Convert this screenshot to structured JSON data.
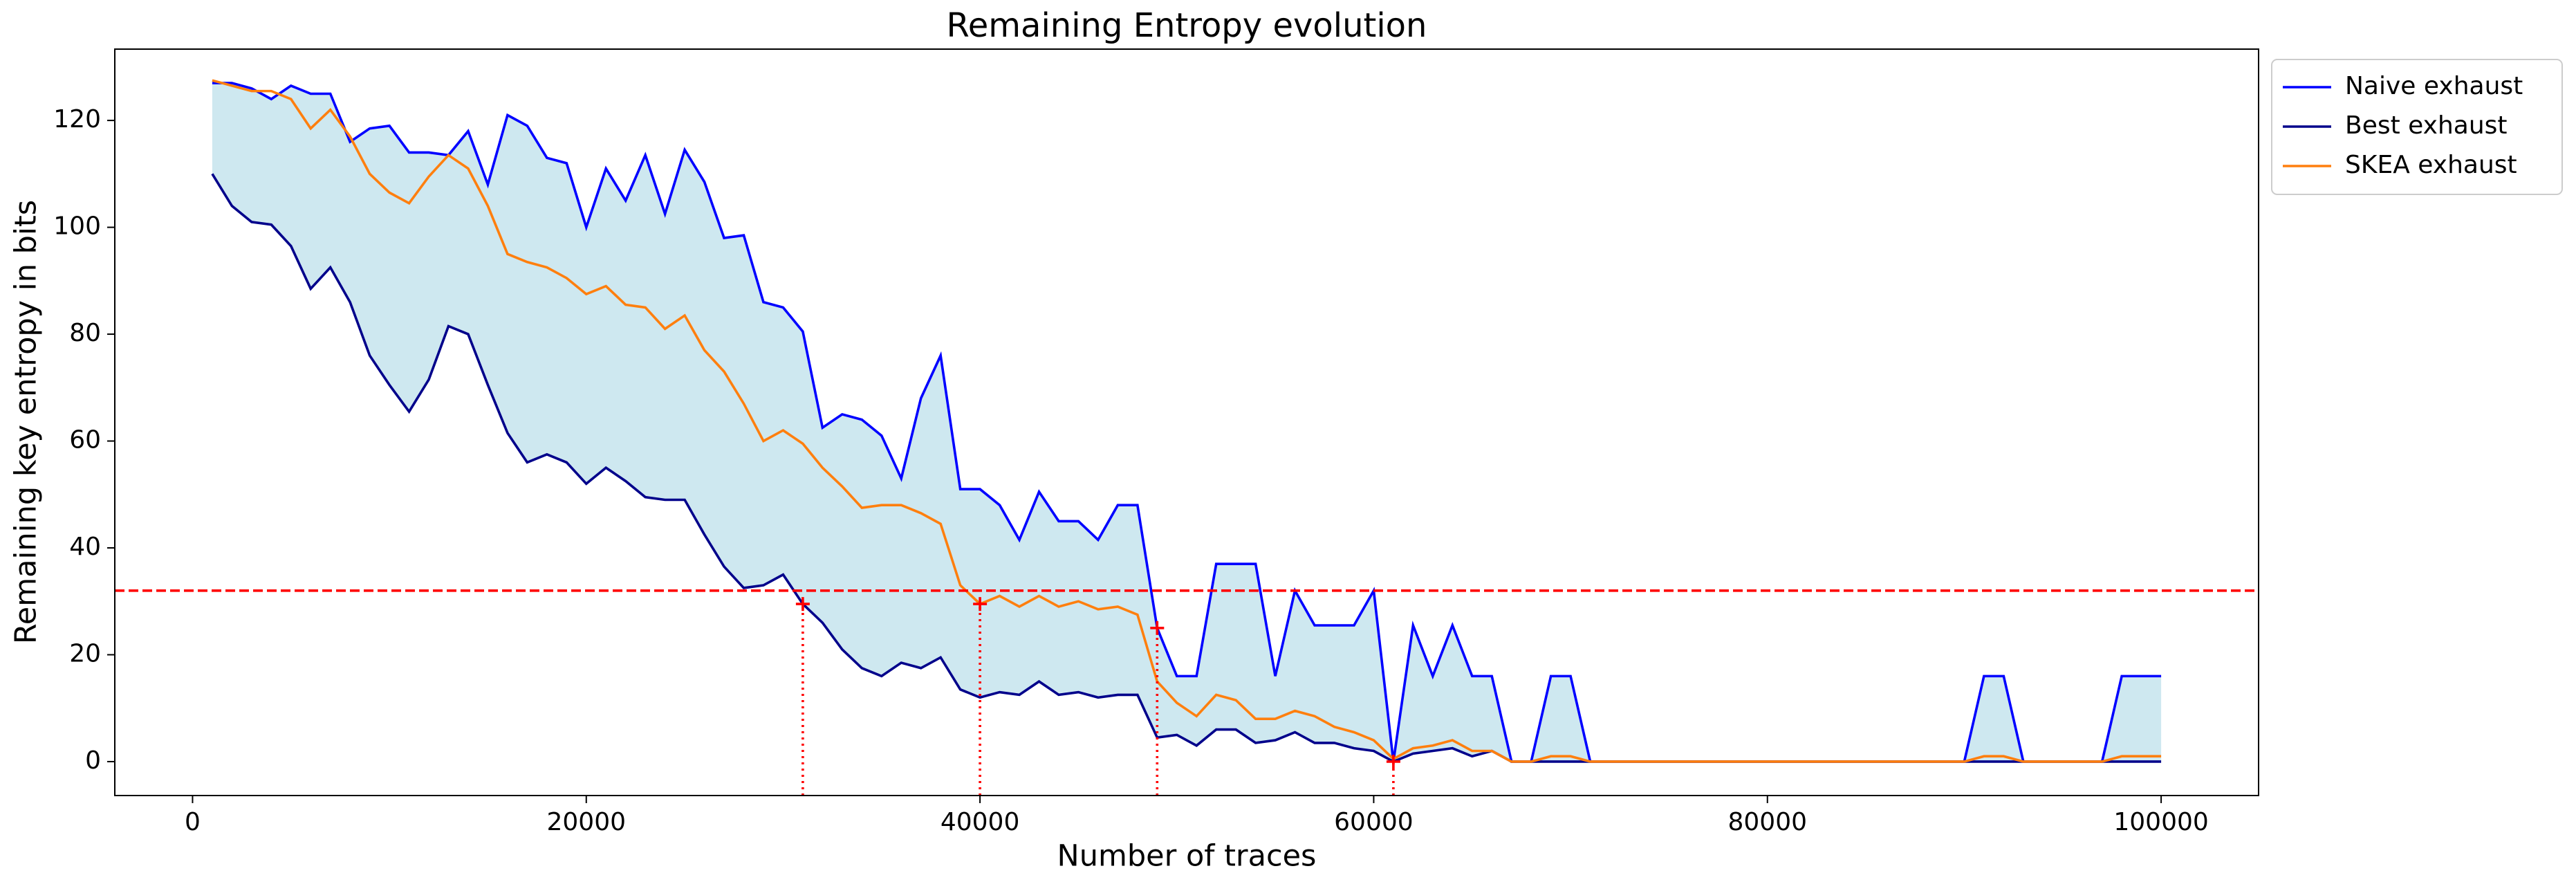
{
  "chart_data": {
    "type": "line",
    "title": "Remaining Entropy evolution",
    "x_label": "Number of traces",
    "y_label": "Remaining key entropy in bits",
    "x": [
      1000,
      2000,
      3000,
      4000,
      5000,
      6000,
      7000,
      8000,
      9000,
      10000,
      11000,
      12000,
      13000,
      14000,
      15000,
      16000,
      17000,
      18000,
      19000,
      20000,
      21000,
      22000,
      23000,
      24000,
      25000,
      26000,
      27000,
      28000,
      29000,
      30000,
      31000,
      32000,
      33000,
      34000,
      35000,
      36000,
      37000,
      38000,
      39000,
      40000,
      41000,
      42000,
      43000,
      44000,
      45000,
      46000,
      47000,
      48000,
      49000,
      50000,
      51000,
      52000,
      53000,
      54000,
      55000,
      56000,
      57000,
      58000,
      59000,
      60000,
      61000,
      62000,
      63000,
      64000,
      65000,
      66000,
      67000,
      68000,
      69000,
      70000,
      71000,
      72000,
      73000,
      74000,
      75000,
      76000,
      77000,
      78000,
      79000,
      80000,
      81000,
      82000,
      83000,
      84000,
      85000,
      86000,
      87000,
      88000,
      89000,
      90000,
      91000,
      92000,
      93000,
      94000,
      95000,
      96000,
      97000,
      98000,
      99000,
      100000
    ],
    "series": [
      {
        "name": "Naive exhaust",
        "color": "#0000ff",
        "values": [
          127,
          127,
          126,
          124,
          126.5,
          125,
          125,
          116,
          118.5,
          119,
          114,
          114,
          113.5,
          118,
          108,
          121,
          119,
          113,
          112,
          100,
          111,
          105,
          113.5,
          102.5,
          114.5,
          108.5,
          98,
          98.5,
          86,
          85,
          80.5,
          62.5,
          65,
          64,
          61,
          53,
          68,
          76,
          51,
          51,
          48,
          41.5,
          50.5,
          45,
          45,
          41.5,
          48,
          48,
          25,
          16,
          16,
          37,
          37,
          37,
          16,
          32,
          25.5,
          25.5,
          25.5,
          32,
          0,
          25.5,
          16,
          25.5,
          16,
          16,
          0,
          0,
          16,
          16,
          0,
          0,
          0,
          0,
          0,
          0,
          0,
          0,
          0,
          0,
          0,
          0,
          0,
          0,
          0,
          0,
          0,
          0,
          0,
          0,
          16,
          16,
          0,
          0,
          0,
          0,
          0,
          16,
          16,
          16
        ]
      },
      {
        "name": "Best exhaust",
        "color": "#00008b",
        "values": [
          110,
          104,
          101,
          100.5,
          96.5,
          88.5,
          92.5,
          86,
          76,
          70.5,
          65.5,
          71.5,
          81.5,
          80,
          70.5,
          61.5,
          56,
          57.5,
          56,
          52,
          55,
          52.5,
          49.5,
          49,
          49,
          42.5,
          36.5,
          32.5,
          33,
          35,
          29.5,
          26,
          21,
          17.5,
          16,
          18.5,
          17.5,
          19.5,
          13.5,
          12,
          13,
          12.5,
          15,
          12.5,
          13,
          12,
          12.5,
          12.5,
          4.5,
          5,
          3,
          6,
          6,
          3.5,
          4,
          5.5,
          3.5,
          3.5,
          2.5,
          2,
          0,
          1.5,
          2,
          2.5,
          1,
          2,
          0,
          0,
          0,
          0,
          0,
          0,
          0,
          0,
          0,
          0,
          0,
          0,
          0,
          0,
          0,
          0,
          0,
          0,
          0,
          0,
          0,
          0,
          0,
          0,
          0,
          0,
          0,
          0,
          0,
          0,
          0,
          0,
          0,
          0
        ]
      },
      {
        "name": "SKEA exhaust",
        "color": "#ff7f0e",
        "values": [
          127.5,
          126.5,
          125.5,
          125.5,
          124,
          118.5,
          122,
          117,
          110,
          106.5,
          104.5,
          109.5,
          113.5,
          111,
          104,
          95,
          93.5,
          92.5,
          90.5,
          87.5,
          89,
          85.5,
          85,
          81,
          83.5,
          77,
          73,
          67,
          60,
          62,
          59.5,
          55,
          51.5,
          47.5,
          48,
          48,
          46.5,
          44.5,
          33,
          29.5,
          31,
          29,
          31,
          29,
          30,
          28.5,
          29,
          27.5,
          15,
          11,
          8.5,
          12.5,
          11.5,
          8,
          8,
          9.5,
          8.5,
          6.5,
          5.5,
          4,
          0.5,
          2.5,
          3,
          4,
          2,
          2,
          0,
          0,
          1,
          1,
          0,
          0,
          0,
          0,
          0,
          0,
          0,
          0,
          0,
          0,
          0,
          0,
          0,
          0,
          0,
          0,
          0,
          0,
          0,
          0,
          1,
          1,
          0,
          0,
          0,
          0,
          0,
          1,
          1,
          1
        ]
      }
    ],
    "fill_color": "#add8e6",
    "fill_opacity": 0.6,
    "threshold": {
      "y": 32,
      "color": "#ff0000"
    },
    "crossings": [
      {
        "x": 31000,
        "y": 29.5
      },
      {
        "x": 40000,
        "y": 29.5
      },
      {
        "x": 49000,
        "y": 25
      },
      {
        "x": 61000,
        "y": 0
      }
    ],
    "xlim": [
      -3950,
      104950
    ],
    "ylim": [
      -6.35,
      133.35
    ],
    "xticks": [
      0,
      20000,
      40000,
      60000,
      80000,
      100000
    ],
    "yticks": [
      0,
      20,
      40,
      60,
      80,
      100,
      120
    ],
    "legend": "outside-upper-right"
  }
}
